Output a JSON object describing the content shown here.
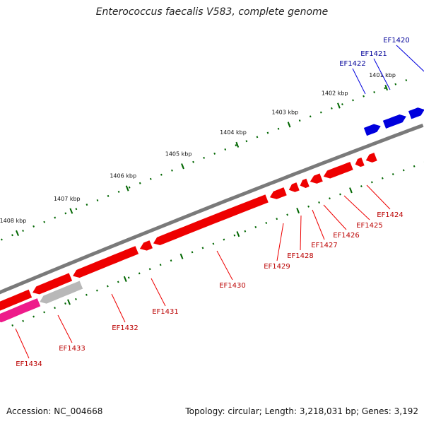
{
  "title": "Enterococcus faecalis V583, complete genome",
  "footer": {
    "accession": "Accession: NC_004668",
    "summary": "Topology: circular; Length: 3,218,031 bp; Genes: 3,192"
  },
  "colors": {
    "backbone": "#808080",
    "forward_gene": "#0000dd",
    "reverse_gene": "#ee0000",
    "pseudo_gene": "#b8b8b8",
    "other_gene": "#ee1b8a",
    "tick": "#006600",
    "label_forward": "#000099",
    "label_reverse": "#bb0000"
  },
  "ticks": [
    {
      "label": "1401 kbp"
    },
    {
      "label": "1402 kbp"
    },
    {
      "label": "1403 kbp"
    },
    {
      "label": "1404 kbp"
    },
    {
      "label": "1405 kbp"
    },
    {
      "label": "1406 kbp"
    },
    {
      "label": "1407 kbp"
    },
    {
      "label": "1408 kbp"
    }
  ],
  "genes": [
    {
      "id": "EF1420",
      "strand": "forward"
    },
    {
      "id": "EF1421",
      "strand": "forward"
    },
    {
      "id": "EF1422",
      "strand": "forward"
    },
    {
      "id": "EF1424",
      "strand": "reverse"
    },
    {
      "id": "EF1425",
      "strand": "reverse"
    },
    {
      "id": "EF1426",
      "strand": "reverse"
    },
    {
      "id": "EF1427",
      "strand": "reverse"
    },
    {
      "id": "EF1428",
      "strand": "reverse"
    },
    {
      "id": "EF1429",
      "strand": "reverse"
    },
    {
      "id": "EF1430",
      "strand": "reverse"
    },
    {
      "id": "EF1431",
      "strand": "reverse"
    },
    {
      "id": "EF1432",
      "strand": "reverse"
    },
    {
      "id": "EF1433",
      "strand": "reverse"
    },
    {
      "id": "EF1434",
      "strand": "reverse"
    }
  ]
}
